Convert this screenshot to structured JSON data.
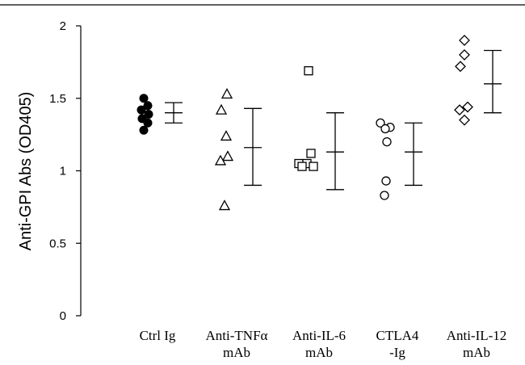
{
  "chart_data": {
    "type": "scatter",
    "title": "",
    "xlabel": "",
    "ylabel": "Anti-GPI Abs (OD405)",
    "ylim": [
      0,
      2
    ],
    "yticks": [
      {
        "value": 0,
        "label": "0"
      },
      {
        "value": 0.5,
        "label": "0.5"
      },
      {
        "value": 1,
        "label": "1"
      },
      {
        "value": 1.5,
        "label": "1.5"
      },
      {
        "value": 2,
        "label": "2"
      }
    ],
    "grid": false,
    "legend": "none",
    "groups": [
      {
        "label_lines": [
          "Ctrl Ig"
        ],
        "marker": "filled-circle",
        "values": [
          1.5,
          1.45,
          1.42,
          1.39,
          1.36,
          1.33,
          1.28
        ],
        "mean": 1.4,
        "error_low": 1.33,
        "error_high": 1.47
      },
      {
        "label_lines": [
          "Anti-TNFα",
          "mAb"
        ],
        "marker": "open-triangle",
        "values": [
          1.53,
          1.42,
          1.24,
          1.1,
          1.07,
          0.76
        ],
        "mean": 1.16,
        "error_low": 0.9,
        "error_high": 1.43
      },
      {
        "label_lines": [
          "Anti-IL-6",
          "mAb"
        ],
        "marker": "open-square",
        "values": [
          1.69,
          1.12,
          1.05,
          1.05,
          1.03,
          1.03
        ],
        "mean": 1.13,
        "error_low": 0.87,
        "error_high": 1.4
      },
      {
        "label_lines": [
          "CTLA4",
          "-Ig"
        ],
        "marker": "open-circle",
        "values": [
          1.33,
          1.3,
          1.29,
          1.2,
          0.93,
          0.83
        ],
        "mean": 1.13,
        "error_low": 0.9,
        "error_high": 1.33
      },
      {
        "label_lines": [
          "Anti-IL-12",
          "mAb"
        ],
        "marker": "open-diamond",
        "values": [
          1.9,
          1.8,
          1.72,
          1.44,
          1.42,
          1.35
        ],
        "mean": 1.6,
        "error_low": 1.4,
        "error_high": 1.83
      }
    ]
  }
}
